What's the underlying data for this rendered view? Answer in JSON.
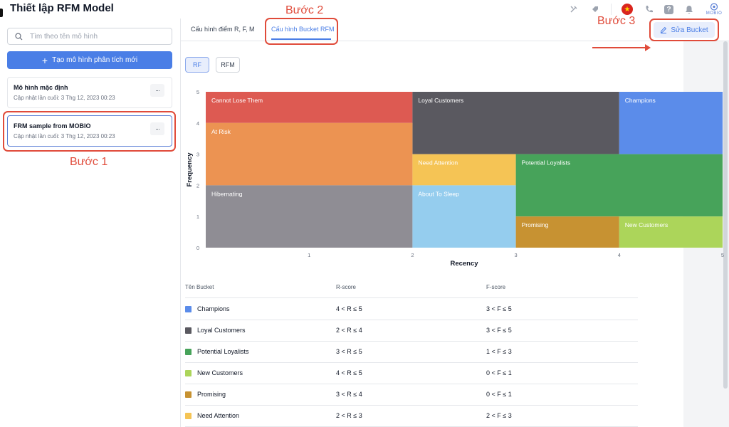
{
  "page": {
    "title": "Thiết lập RFM Model"
  },
  "header": {
    "icons": [
      "tools-icon",
      "tag-icon",
      "vietnam-flag-icon",
      "phone-icon",
      "help-icon",
      "bell-icon"
    ],
    "logo_text": "MOBIO"
  },
  "sidebar": {
    "search_placeholder": "Tìm theo tên mô hình",
    "create_label": "Tạo mô hình phân tích mới",
    "models": [
      {
        "name": "Mô hình mặc định",
        "updated": "Cập nhật lần cuối: 3 Thg 12, 2023 00:23",
        "more": "···"
      },
      {
        "name": "FRM sample from MOBIO",
        "updated": "Cập nhật lần cuối: 3 Thg 12, 2023 00:23",
        "more": "···"
      }
    ]
  },
  "annotations": {
    "step1": "Bước 1",
    "step2": "Bước 2",
    "step3": "Bước 3"
  },
  "main": {
    "tabs": [
      {
        "label": "Cấu hình điểm R, F, M",
        "active": false
      },
      {
        "label": "Cấu hình Bucket RFM",
        "active": true
      }
    ],
    "edit_label": "Sửa Bucket",
    "mode_buttons": [
      {
        "label": "RF",
        "active": true
      },
      {
        "label": "RFM",
        "active": false
      }
    ]
  },
  "chart_data": {
    "type": "heatmap",
    "xlabel": "Recency",
    "ylabel": "Frequency",
    "xlim": [
      0,
      5
    ],
    "ylim": [
      0,
      5
    ],
    "x_ticks": [
      "1",
      "2",
      "3",
      "4",
      "5"
    ],
    "y_ticks": [
      "0",
      "1",
      "2",
      "3",
      "4",
      "5"
    ],
    "buckets": [
      {
        "name": "Cannot Lose Them",
        "r": [
          0,
          2
        ],
        "f": [
          4,
          5
        ],
        "color": "#dd5a52"
      },
      {
        "name": "Loyal Customers",
        "r": [
          2,
          4
        ],
        "f": [
          3,
          5
        ],
        "color": "#5a5960"
      },
      {
        "name": "Champions",
        "r": [
          4,
          5
        ],
        "f": [
          3,
          5
        ],
        "color": "#5b8cea"
      },
      {
        "name": "At Risk",
        "r": [
          0,
          2
        ],
        "f": [
          2,
          4
        ],
        "color": "#ec9352"
      },
      {
        "name": "Need Attention",
        "r": [
          2,
          3
        ],
        "f": [
          2,
          3
        ],
        "color": "#f5c455"
      },
      {
        "name": "Potential Loyalists",
        "r": [
          3,
          5
        ],
        "f": [
          1,
          3
        ],
        "color": "#47a35a"
      },
      {
        "name": "Hibernating",
        "r": [
          0,
          2
        ],
        "f": [
          0,
          2
        ],
        "color": "#8f8d94"
      },
      {
        "name": "About To Sleep",
        "r": [
          2,
          3
        ],
        "f": [
          0,
          2
        ],
        "color": "#95cdee"
      },
      {
        "name": "Promising",
        "r": [
          3,
          4
        ],
        "f": [
          0,
          1
        ],
        "color": "#c79232"
      },
      {
        "name": "New Customers",
        "r": [
          4,
          5
        ],
        "f": [
          0,
          1
        ],
        "color": "#acd55a"
      }
    ]
  },
  "table": {
    "headers": {
      "name": "Tên Bucket",
      "r": "R-score",
      "f": "F-score"
    },
    "rows": [
      {
        "name": "Champions",
        "color": "#5b8cea",
        "r": "4 < R ≤ 5",
        "f": "3 < F ≤ 5"
      },
      {
        "name": "Loyal Customers",
        "color": "#5a5960",
        "r": "2 < R ≤ 4",
        "f": "3 < F ≤ 5"
      },
      {
        "name": "Potential Loyalists",
        "color": "#47a35a",
        "r": "3 < R ≤ 5",
        "f": "1 < F ≤ 3"
      },
      {
        "name": "New Customers",
        "color": "#acd55a",
        "r": "4 < R ≤ 5",
        "f": "0 < F ≤ 1"
      },
      {
        "name": "Promising",
        "color": "#c79232",
        "r": "3 < R ≤ 4",
        "f": "0 < F ≤ 1"
      },
      {
        "name": "Need Attention",
        "color": "#f5c455",
        "r": "2 < R ≤ 3",
        "f": "2 < F ≤ 3"
      }
    ]
  }
}
